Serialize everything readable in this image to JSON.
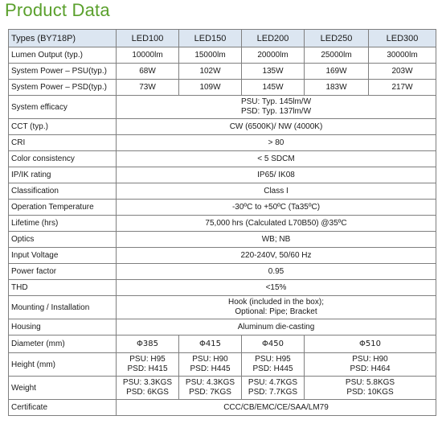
{
  "title": "Product Data",
  "header": {
    "types": "Types (BY718P)",
    "models": [
      "LED100",
      "LED150",
      "LED200",
      "LED250",
      "LED300"
    ]
  },
  "lumen_output": {
    "label": "Lumen Output (typ.)",
    "values": [
      "10000lm",
      "15000lm",
      "20000lm",
      "25000lm",
      "30000lm"
    ]
  },
  "power_psu": {
    "label": "System Power – PSU(typ.)",
    "values": [
      "68W",
      "102W",
      "135W",
      "169W",
      "203W"
    ]
  },
  "power_psd": {
    "label": "System Power – PSD(typ.)",
    "values": [
      "73W",
      "109W",
      "145W",
      "183W",
      "217W"
    ]
  },
  "efficacy": {
    "label": "System efficacy",
    "line1": "PSU: Typ. 145lm/W",
    "line2": "PSD: Typ. 137lm/W"
  },
  "cct": {
    "label": "CCT (typ.)",
    "value": "CW (6500K)/ NW (4000K)"
  },
  "cri": {
    "label": "CRI",
    "value": "> 80"
  },
  "color_consistency": {
    "label": "Color consistency",
    "value": "< 5 SDCM"
  },
  "ip_rating": {
    "label": "IP/IK rating",
    "value": "IP65/ IK08"
  },
  "classification": {
    "label": "Classification",
    "value": "Class I"
  },
  "operation_temp": {
    "label": "Operation Temperature",
    "value": "-30ºC  to  +50ºC (Ta35ºC)"
  },
  "lifetime": {
    "label": "Lifetime (hrs)",
    "value": "75,000 hrs (Calculated L70B50) @35ºC"
  },
  "optics": {
    "label": "Optics",
    "value": "WB; NB"
  },
  "input_voltage": {
    "label": "Input Voltage",
    "value": "220-240V, 50/60 Hz"
  },
  "power_factor": {
    "label": "Power factor",
    "value": "0.95"
  },
  "thd": {
    "label": "THD",
    "value": "<15%"
  },
  "mounting": {
    "label": "Mounting /  Installation",
    "line1": "Hook (included in the box);",
    "line2": "Optional: Pipe; Bracket"
  },
  "housing": {
    "label": "Housing",
    "value": "Aluminum die-casting"
  },
  "diameter": {
    "label": "Diameter (mm)",
    "values": [
      "Φ385",
      "Φ415",
      "Φ450",
      "Φ510"
    ]
  },
  "height": {
    "label": "Height (mm)",
    "values": [
      {
        "psu": "PSU: H95",
        "psd": "PSD: H415"
      },
      {
        "psu": "PSU: H90",
        "psd": "PSD: H445"
      },
      {
        "psu": "PSU: H95",
        "psd": "PSD: H445"
      },
      {
        "psu": "PSU: H90",
        "psd": "PSD: H464"
      }
    ]
  },
  "weight": {
    "label": "Weight",
    "values": [
      {
        "psu": "PSU: 3.3KGS",
        "psd": "PSD: 6KGS"
      },
      {
        "psu": "PSU: 4.3KGS",
        "psd": "PSD: 7KGS"
      },
      {
        "psu": "PSU: 4.7KGS",
        "psd": "PSD: 7.7KGS"
      },
      {
        "psu": "PSU: 5.8KGS",
        "psd": "PSD: 10KGS"
      }
    ]
  },
  "certificate": {
    "label": "Certificate",
    "value": "CCC/CB/EMC/CE/SAA/LM79"
  }
}
